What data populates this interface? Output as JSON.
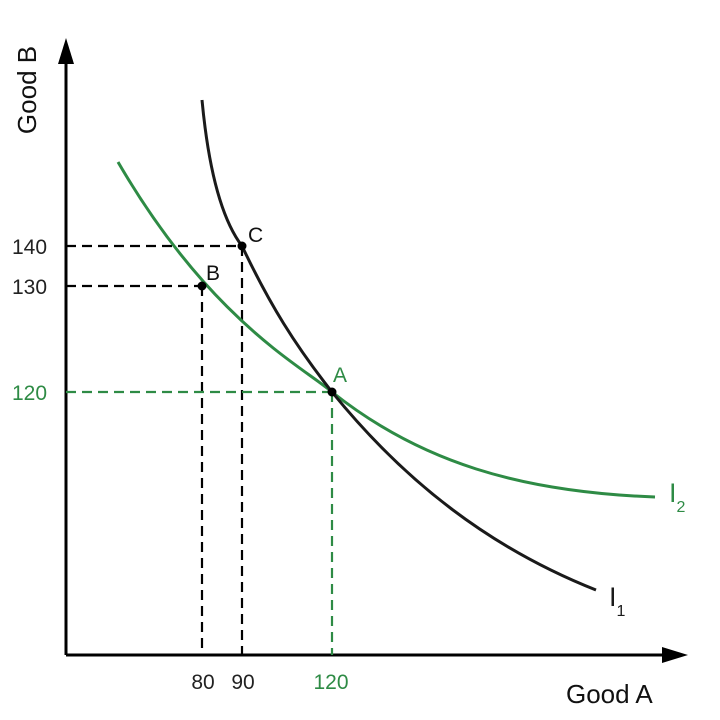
{
  "axes": {
    "x_label": "Good A",
    "y_label": "Good B"
  },
  "ticks": {
    "x": [
      "80",
      "90",
      "120"
    ],
    "y": [
      "140",
      "130",
      "120"
    ]
  },
  "points": {
    "A": {
      "label": "A",
      "good_a": 120,
      "good_b": 120
    },
    "B": {
      "label": "B",
      "good_a": 80,
      "good_b": 130
    },
    "C": {
      "label": "C",
      "good_a": 90,
      "good_b": 140
    }
  },
  "curves": {
    "I1": {
      "letter": "I",
      "subscript": "1"
    },
    "I2": {
      "letter": "I",
      "subscript": "2"
    }
  },
  "colors": {
    "black_curve": "#1a1a1a",
    "green_curve": "#2e8b45",
    "axis": "#000000",
    "tick_text": "#222222"
  }
}
